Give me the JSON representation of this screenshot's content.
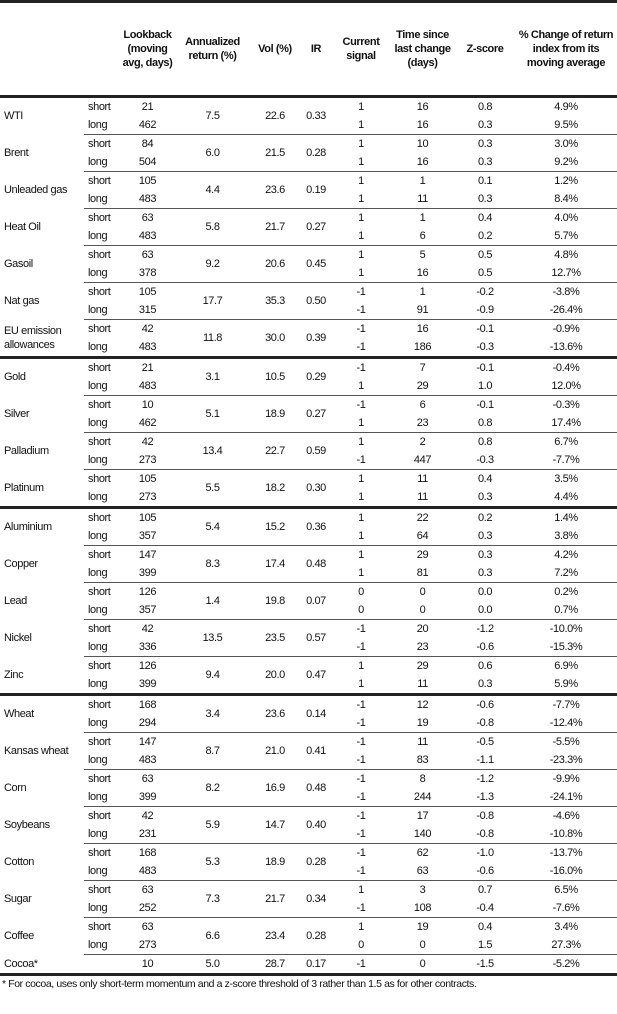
{
  "headers": [
    "",
    "",
    "Lookback (moving avg, days)",
    "Annualized return (%)",
    "Vol (%)",
    "IR",
    "Current signal",
    "Time since last change (days)",
    "Z-score",
    "% Change of return index from its moving average"
  ],
  "sub_labels": {
    "short": "short",
    "long": "long"
  },
  "groups": [
    [
      {
        "name": "WTI",
        "ann": "7.5",
        "vol": "22.6",
        "ir": "0.33",
        "short": {
          "lb": "21",
          "sig": "1",
          "time": "16",
          "z": "0.8",
          "pct": "4.9%"
        },
        "long": {
          "lb": "462",
          "sig": "1",
          "time": "16",
          "z": "0.3",
          "pct": "9.5%"
        }
      },
      {
        "name": "Brent",
        "ann": "6.0",
        "vol": "21.5",
        "ir": "0.28",
        "short": {
          "lb": "84",
          "sig": "1",
          "time": "10",
          "z": "0.3",
          "pct": "3.0%"
        },
        "long": {
          "lb": "504",
          "sig": "1",
          "time": "16",
          "z": "0.3",
          "pct": "9.2%"
        }
      },
      {
        "name": "Unleaded gas",
        "ann": "4.4",
        "vol": "23.6",
        "ir": "0.19",
        "short": {
          "lb": "105",
          "sig": "1",
          "time": "1",
          "z": "0.1",
          "pct": "1.2%"
        },
        "long": {
          "lb": "483",
          "sig": "1",
          "time": "11",
          "z": "0.3",
          "pct": "8.4%"
        }
      },
      {
        "name": "Heat Oil",
        "ann": "5.8",
        "vol": "21.7",
        "ir": "0.27",
        "short": {
          "lb": "63",
          "sig": "1",
          "time": "1",
          "z": "0.4",
          "pct": "4.0%"
        },
        "long": {
          "lb": "483",
          "sig": "1",
          "time": "6",
          "z": "0.2",
          "pct": "5.7%"
        }
      },
      {
        "name": "Gasoil",
        "ann": "9.2",
        "vol": "20.6",
        "ir": "0.45",
        "short": {
          "lb": "63",
          "sig": "1",
          "time": "5",
          "z": "0.5",
          "pct": "4.8%"
        },
        "long": {
          "lb": "378",
          "sig": "1",
          "time": "16",
          "z": "0.5",
          "pct": "12.7%"
        }
      },
      {
        "name": "Nat gas",
        "ann": "17.7",
        "vol": "35.3",
        "ir": "0.50",
        "short": {
          "lb": "105",
          "sig": "-1",
          "time": "1",
          "z": "-0.2",
          "pct": "-3.8%"
        },
        "long": {
          "lb": "315",
          "sig": "-1",
          "time": "91",
          "z": "-0.9",
          "pct": "-26.4%"
        }
      },
      {
        "name": "EU emission allowances",
        "ann": "11.8",
        "vol": "30.0",
        "ir": "0.39",
        "short": {
          "lb": "42",
          "sig": "-1",
          "time": "16",
          "z": "-0.1",
          "pct": "-0.9%"
        },
        "long": {
          "lb": "483",
          "sig": "-1",
          "time": "186",
          "z": "-0.3",
          "pct": "-13.6%"
        }
      }
    ],
    [
      {
        "name": "Gold",
        "ann": "3.1",
        "vol": "10.5",
        "ir": "0.29",
        "short": {
          "lb": "21",
          "sig": "-1",
          "time": "7",
          "z": "-0.1",
          "pct": "-0.4%"
        },
        "long": {
          "lb": "483",
          "sig": "1",
          "time": "29",
          "z": "1.0",
          "pct": "12.0%"
        }
      },
      {
        "name": "Silver",
        "ann": "5.1",
        "vol": "18.9",
        "ir": "0.27",
        "short": {
          "lb": "10",
          "sig": "-1",
          "time": "6",
          "z": "-0.1",
          "pct": "-0.3%"
        },
        "long": {
          "lb": "462",
          "sig": "1",
          "time": "23",
          "z": "0.8",
          "pct": "17.4%"
        }
      },
      {
        "name": "Palladium",
        "ann": "13.4",
        "vol": "22.7",
        "ir": "0.59",
        "short": {
          "lb": "42",
          "sig": "1",
          "time": "2",
          "z": "0.8",
          "pct": "6.7%"
        },
        "long": {
          "lb": "273",
          "sig": "-1",
          "time": "447",
          "z": "-0.3",
          "pct": "-7.7%"
        }
      },
      {
        "name": "Platinum",
        "ann": "5.5",
        "vol": "18.2",
        "ir": "0.30",
        "short": {
          "lb": "105",
          "sig": "1",
          "time": "11",
          "z": "0.4",
          "pct": "3.5%"
        },
        "long": {
          "lb": "273",
          "sig": "1",
          "time": "11",
          "z": "0.3",
          "pct": "4.4%"
        }
      }
    ],
    [
      {
        "name": "Aluminium",
        "ann": "5.4",
        "vol": "15.2",
        "ir": "0.36",
        "short": {
          "lb": "105",
          "sig": "1",
          "time": "22",
          "z": "0.2",
          "pct": "1.4%"
        },
        "long": {
          "lb": "357",
          "sig": "1",
          "time": "64",
          "z": "0.3",
          "pct": "3.8%"
        }
      },
      {
        "name": "Copper",
        "ann": "8.3",
        "vol": "17.4",
        "ir": "0.48",
        "short": {
          "lb": "147",
          "sig": "1",
          "time": "29",
          "z": "0.3",
          "pct": "4.2%"
        },
        "long": {
          "lb": "399",
          "sig": "1",
          "time": "81",
          "z": "0.3",
          "pct": "7.2%"
        }
      },
      {
        "name": "Lead",
        "ann": "1.4",
        "vol": "19.8",
        "ir": "0.07",
        "short": {
          "lb": "126",
          "sig": "0",
          "time": "0",
          "z": "0.0",
          "pct": "0.2%"
        },
        "long": {
          "lb": "357",
          "sig": "0",
          "time": "0",
          "z": "0.0",
          "pct": "0.7%"
        }
      },
      {
        "name": "Nickel",
        "ann": "13.5",
        "vol": "23.5",
        "ir": "0.57",
        "short": {
          "lb": "42",
          "sig": "-1",
          "time": "20",
          "z": "-1.2",
          "pct": "-10.0%"
        },
        "long": {
          "lb": "336",
          "sig": "-1",
          "time": "23",
          "z": "-0.6",
          "pct": "-15.3%"
        }
      },
      {
        "name": "Zinc",
        "ann": "9.4",
        "vol": "20.0",
        "ir": "0.47",
        "short": {
          "lb": "126",
          "sig": "1",
          "time": "29",
          "z": "0.6",
          "pct": "6.9%"
        },
        "long": {
          "lb": "399",
          "sig": "1",
          "time": "11",
          "z": "0.3",
          "pct": "5.9%"
        }
      }
    ],
    [
      {
        "name": "Wheat",
        "ann": "3.4",
        "vol": "23.6",
        "ir": "0.14",
        "short": {
          "lb": "168",
          "sig": "-1",
          "time": "12",
          "z": "-0.6",
          "pct": "-7.7%"
        },
        "long": {
          "lb": "294",
          "sig": "-1",
          "time": "19",
          "z": "-0.8",
          "pct": "-12.4%"
        }
      },
      {
        "name": "Kansas wheat",
        "ann": "8.7",
        "vol": "21.0",
        "ir": "0.41",
        "short": {
          "lb": "147",
          "sig": "-1",
          "time": "11",
          "z": "-0.5",
          "pct": "-5.5%"
        },
        "long": {
          "lb": "483",
          "sig": "-1",
          "time": "83",
          "z": "-1.1",
          "pct": "-23.3%"
        }
      },
      {
        "name": "Corn",
        "ann": "8.2",
        "vol": "16.9",
        "ir": "0.48",
        "short": {
          "lb": "63",
          "sig": "-1",
          "time": "8",
          "z": "-1.2",
          "pct": "-9.9%"
        },
        "long": {
          "lb": "399",
          "sig": "-1",
          "time": "244",
          "z": "-1.3",
          "pct": "-24.1%"
        }
      },
      {
        "name": "Soybeans",
        "ann": "5.9",
        "vol": "14.7",
        "ir": "0.40",
        "short": {
          "lb": "42",
          "sig": "-1",
          "time": "17",
          "z": "-0.8",
          "pct": "-4.6%"
        },
        "long": {
          "lb": "231",
          "sig": "-1",
          "time": "140",
          "z": "-0.8",
          "pct": "-10.8%"
        }
      },
      {
        "name": "Cotton",
        "ann": "5.3",
        "vol": "18.9",
        "ir": "0.28",
        "short": {
          "lb": "168",
          "sig": "-1",
          "time": "62",
          "z": "-1.0",
          "pct": "-13.7%"
        },
        "long": {
          "lb": "483",
          "sig": "-1",
          "time": "63",
          "z": "-0.6",
          "pct": "-16.0%"
        }
      },
      {
        "name": "Sugar",
        "ann": "7.3",
        "vol": "21.7",
        "ir": "0.34",
        "short": {
          "lb": "63",
          "sig": "1",
          "time": "3",
          "z": "0.7",
          "pct": "6.5%"
        },
        "long": {
          "lb": "252",
          "sig": "-1",
          "time": "108",
          "z": "-0.4",
          "pct": "-7.6%"
        }
      },
      {
        "name": "Coffee",
        "ann": "6.6",
        "vol": "23.4",
        "ir": "0.28",
        "short": {
          "lb": "63",
          "sig": "1",
          "time": "19",
          "z": "0.4",
          "pct": "3.4%"
        },
        "long": {
          "lb": "273",
          "sig": "0",
          "time": "0",
          "z": "1.5",
          "pct": "27.3%"
        }
      },
      {
        "name": "Cocoa*",
        "single": {
          "lb": "10",
          "ann": "5.0",
          "vol": "28.7",
          "ir": "0.17",
          "sig": "-1",
          "time": "0",
          "z": "-1.5",
          "pct": "-5.2%"
        }
      }
    ]
  ],
  "footnote": "* For cocoa, uses only short-term momentum and a z-score threshold of 3 rather than 1.5 as for other contracts."
}
